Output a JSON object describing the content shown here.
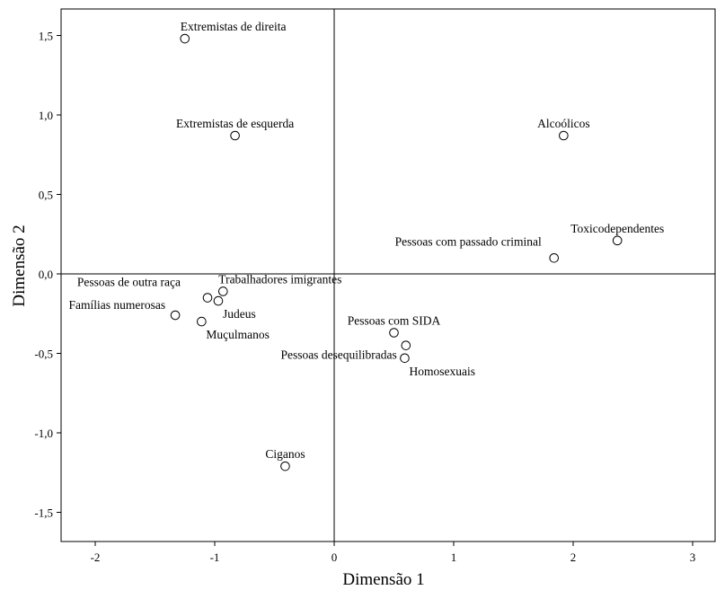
{
  "chart_data": {
    "type": "scatter",
    "title": "",
    "xlabel": "Dimensão 1",
    "ylabel": "Dimensão 2",
    "xlim": [
      -2.28,
      3.2
    ],
    "ylim": [
      -1.68,
      1.68
    ],
    "xticks": [
      {
        "value": -2,
        "label": "-2"
      },
      {
        "value": -1,
        "label": "-1"
      },
      {
        "value": 0,
        "label": "0"
      },
      {
        "value": 1,
        "label": "1"
      },
      {
        "value": 2,
        "label": "2"
      },
      {
        "value": 3,
        "label": "3"
      }
    ],
    "yticks": [
      {
        "value": 1.5,
        "label": "1,5"
      },
      {
        "value": 1.0,
        "label": "1,0"
      },
      {
        "value": 0.5,
        "label": "0,5"
      },
      {
        "value": 0.0,
        "label": "0,0"
      },
      {
        "value": -0.5,
        "label": "-0,5"
      },
      {
        "value": -1.0,
        "label": "-1,0"
      },
      {
        "value": -1.5,
        "label": "-1,5"
      }
    ],
    "reference_lines": {
      "x": 0,
      "y": 0
    },
    "grid": false,
    "legend": "none",
    "marker": "open-circle",
    "points": [
      {
        "label": "Extremistas de direita",
        "x": -1.25,
        "y": 1.48,
        "label_anchor": "above-right"
      },
      {
        "label": "Extremistas de esquerda",
        "x": -0.83,
        "y": 0.87,
        "label_anchor": "above-center"
      },
      {
        "label": "Alcoólicos",
        "x": 1.92,
        "y": 0.87,
        "label_anchor": "above-center"
      },
      {
        "label": "Toxicodependentes",
        "x": 2.37,
        "y": 0.21,
        "label_anchor": "above-center"
      },
      {
        "label": "Pessoas com passado criminal",
        "x": 1.84,
        "y": 0.1,
        "label_anchor": "above-left"
      },
      {
        "label": "Pessoas de outra raça",
        "x": -1.06,
        "y": -0.15,
        "label_anchor": "left-high"
      },
      {
        "label": "Trabalhadores imigrantes",
        "x": -0.93,
        "y": -0.11,
        "label_anchor": "above-right"
      },
      {
        "label": "Famílias numerosas",
        "x": -1.33,
        "y": -0.26,
        "label_anchor": "left"
      },
      {
        "label": "Judeus",
        "x": -0.97,
        "y": -0.17,
        "label_anchor": "below-right"
      },
      {
        "label": "Muçulmanos",
        "x": -1.11,
        "y": -0.3,
        "label_anchor": "below-right"
      },
      {
        "label": "Pessoas com SIDA",
        "x": 0.5,
        "y": -0.37,
        "label_anchor": "above-center"
      },
      {
        "label": "Pessoas desequilibradas",
        "x": 0.6,
        "y": -0.45,
        "label_anchor": "below-left"
      },
      {
        "label": "Homosexuais",
        "x": 0.59,
        "y": -0.53,
        "label_anchor": "below-right"
      },
      {
        "label": "Ciganos",
        "x": -0.41,
        "y": -1.21,
        "label_anchor": "above-center"
      }
    ]
  }
}
